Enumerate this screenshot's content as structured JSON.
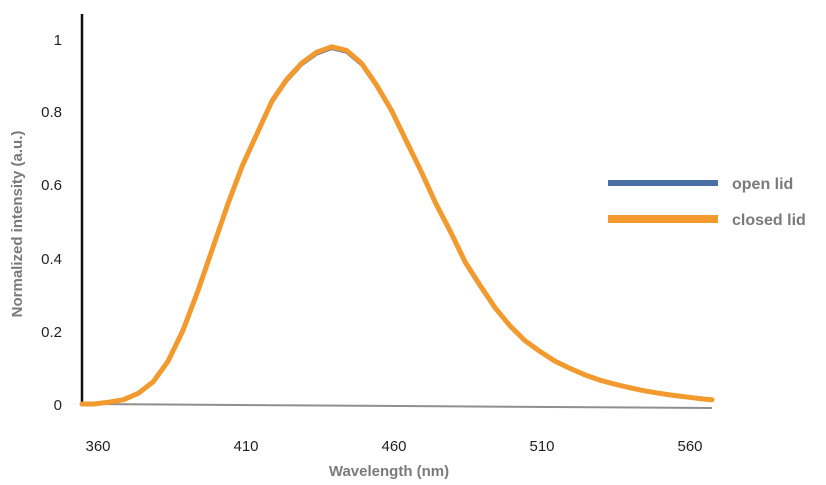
{
  "chart_data": {
    "type": "line",
    "title": "",
    "xlabel": "Wavelength (nm)",
    "ylabel": "Normalized intensity (a.u.)",
    "xlim": [
      356,
      568
    ],
    "ylim": [
      0,
      1
    ],
    "x_ticks": [
      "360",
      "410",
      "460",
      "510",
      "560"
    ],
    "y_ticks": [
      "0",
      "0.2",
      "0.4",
      "0.6",
      "0.8",
      "1"
    ],
    "grid": false,
    "legend_position": "right",
    "x": [
      356,
      360,
      365,
      370,
      375,
      380,
      385,
      390,
      395,
      400,
      405,
      410,
      415,
      420,
      425,
      430,
      435,
      440,
      445,
      450,
      455,
      460,
      465,
      470,
      475,
      480,
      485,
      490,
      495,
      500,
      505,
      510,
      515,
      520,
      525,
      530,
      535,
      540,
      545,
      550,
      555,
      560,
      565,
      568
    ],
    "series": [
      {
        "name": "open lid",
        "color": "#4a6fa5",
        "values": [
          0.0,
          0.0,
          0.005,
          0.012,
          0.03,
          0.062,
          0.12,
          0.2,
          0.31,
          0.43,
          0.55,
          0.66,
          0.75,
          0.84,
          0.9,
          0.945,
          0.975,
          0.99,
          0.98,
          0.945,
          0.885,
          0.815,
          0.73,
          0.645,
          0.555,
          0.475,
          0.39,
          0.325,
          0.265,
          0.215,
          0.175,
          0.145,
          0.118,
          0.098,
          0.081,
          0.066,
          0.055,
          0.045,
          0.036,
          0.029,
          0.023,
          0.018,
          0.013,
          0.011
        ]
      },
      {
        "name": "closed lid",
        "color": "#f29a2e",
        "values": [
          0.0,
          0.0,
          0.005,
          0.012,
          0.03,
          0.062,
          0.12,
          0.205,
          0.315,
          0.435,
          0.555,
          0.665,
          0.755,
          0.845,
          0.905,
          0.95,
          0.98,
          0.995,
          0.985,
          0.95,
          0.89,
          0.82,
          0.735,
          0.65,
          0.56,
          0.48,
          0.395,
          0.33,
          0.268,
          0.218,
          0.177,
          0.147,
          0.12,
          0.1,
          0.082,
          0.067,
          0.056,
          0.046,
          0.037,
          0.03,
          0.024,
          0.019,
          0.014,
          0.012
        ]
      }
    ]
  },
  "colors": {
    "axis": "#111111",
    "baseline": "#8f8f8f",
    "text": "#222222",
    "title": "#7a7a7a"
  }
}
